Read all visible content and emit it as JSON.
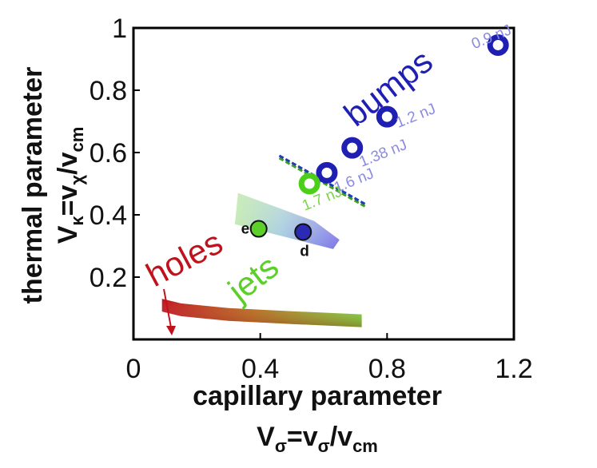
{
  "chart_data": {
    "type": "scatter",
    "xlim": [
      0,
      1.2
    ],
    "ylim": [
      0,
      1.0
    ],
    "x_ticks": [
      {
        "value": 0,
        "label": "0"
      },
      {
        "value": 0.4,
        "label": "0.4"
      },
      {
        "value": 0.8,
        "label": "0.8"
      },
      {
        "value": 1.2,
        "label": "1.2"
      }
    ],
    "y_ticks": [
      {
        "value": 0.2,
        "label": "0.2"
      },
      {
        "value": 0.4,
        "label": "0.4"
      },
      {
        "value": 0.6,
        "label": "0.6"
      },
      {
        "value": 0.8,
        "label": "0.8"
      },
      {
        "value": 1.0,
        "label": "1"
      }
    ],
    "xlabel": {
      "line1": "capillary parameter",
      "line2": "Vσ=vσ/vcm"
    },
    "ylabel": {
      "line1": "thermal parameter",
      "line2": "Vκ=vχ/vcm"
    },
    "series": [
      {
        "name": "energy points",
        "points": [
          {
            "x": 1.15,
            "y": 0.945,
            "label": "0.9 nJ",
            "color": "#1f1fb4",
            "label_color": "#8a8ae0"
          },
          {
            "x": 0.8,
            "y": 0.715,
            "label": "1.2 nJ",
            "color": "#1f1fb4",
            "label_color": "#8a8ae0"
          },
          {
            "x": 0.69,
            "y": 0.615,
            "label": "1.38 nJ",
            "color": "#1f1fb4",
            "label_color": "#8a8ae0"
          },
          {
            "x": 0.61,
            "y": 0.535,
            "label": "1.6 nJ",
            "color": "#1f1fb4",
            "label_color": "#8a8ae0"
          },
          {
            "x": 0.555,
            "y": 0.5,
            "label": "1.7 nJ",
            "color": "#4ccf1a",
            "label_color": "#7ad64a"
          }
        ]
      },
      {
        "name": "marked points",
        "points": [
          {
            "x": 0.395,
            "y": 0.355,
            "label": "e",
            "color": "#5ccf2a"
          },
          {
            "x": 0.535,
            "y": 0.345,
            "label": "d",
            "color": "#2a2ab4"
          }
        ]
      }
    ],
    "regions": [
      {
        "name": "bumps",
        "label": "bumps",
        "color": "#1f1fb4"
      },
      {
        "name": "jets",
        "label": "jets",
        "color": "#4ccf1a"
      },
      {
        "name": "holes",
        "label": "holes",
        "color": "#c0121a"
      }
    ],
    "boundary_line": {
      "x": [
        0.46,
        0.73
      ],
      "y": [
        0.59,
        0.435
      ]
    },
    "jet_band": {
      "x": [
        0.09,
        0.15,
        0.3,
        0.5,
        0.72
      ],
      "y": [
        0.11,
        0.095,
        0.08,
        0.07,
        0.06
      ]
    },
    "transition_region": {
      "x": [
        0.33,
        0.57,
        0.65,
        0.63,
        0.32
      ],
      "y": [
        0.47,
        0.38,
        0.32,
        0.29,
        0.37
      ]
    }
  }
}
